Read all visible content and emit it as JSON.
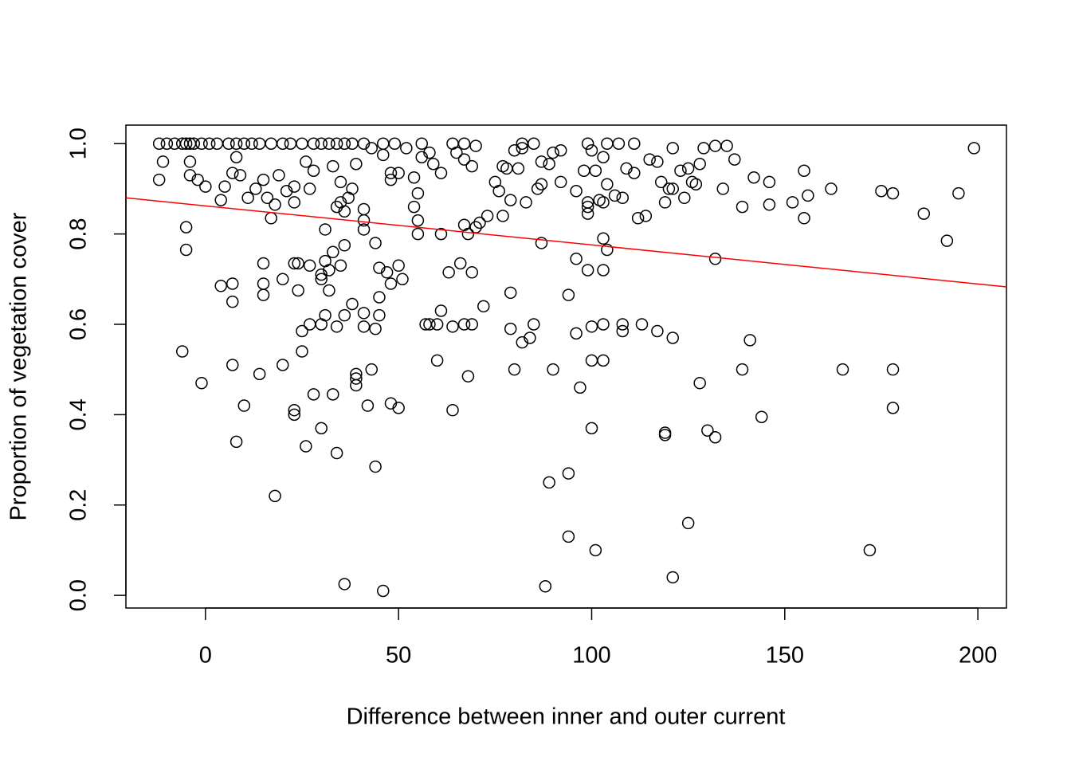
{
  "chart_data": {
    "type": "scatter",
    "x_label": "Difference between inner and outer current",
    "y_label": "Proportion of vegetation cover",
    "xlim": [
      -20.6,
      207.4
    ],
    "ylim": [
      -0.028,
      1.041
    ],
    "xticks": [
      0,
      50,
      100,
      150,
      200
    ],
    "yticks": [
      {
        "value": 0,
        "label": "0.0"
      },
      0.2,
      0.4,
      0.6,
      0.8,
      {
        "value": 1,
        "label": "1.0"
      }
    ],
    "color": "#000000",
    "x": [
      -12,
      -10,
      -8,
      -6,
      -5,
      -4,
      -3,
      -1,
      1,
      3,
      6,
      8,
      10,
      12,
      14,
      17,
      20,
      22,
      25,
      28,
      30,
      32,
      34,
      36,
      38,
      41,
      43,
      46,
      49,
      52,
      56,
      58,
      64,
      67,
      70,
      82,
      85,
      99,
      104,
      107,
      111,
      -11,
      -12,
      -4,
      -4,
      -2,
      0,
      4,
      5,
      7,
      8,
      9,
      11,
      13,
      15,
      16,
      17,
      18,
      19,
      21,
      23,
      23,
      26,
      27,
      28,
      33,
      35,
      35,
      34,
      36,
      37,
      38,
      39,
      41,
      41,
      41,
      46,
      48,
      48,
      50,
      54,
      55,
      54,
      55,
      55,
      56,
      59,
      61,
      61,
      65,
      67,
      67,
      68,
      69,
      70,
      71,
      73,
      75,
      76,
      77,
      77,
      78,
      79,
      80,
      81,
      82,
      83,
      86,
      87,
      87,
      89,
      90,
      92,
      92,
      96,
      98,
      99,
      99,
      99,
      100,
      101,
      102,
      103,
      103,
      104,
      106,
      108,
      109,
      111,
      112,
      114,
      115,
      117,
      118,
      119,
      120,
      121,
      121,
      123,
      124,
      125,
      126,
      127,
      128,
      129,
      132,
      134,
      135,
      137,
      139,
      142,
      146,
      146,
      152,
      155,
      156,
      155,
      162,
      175,
      178,
      186,
      192,
      195,
      199,
      -5,
      -5,
      4,
      7,
      7,
      15,
      15,
      15,
      20,
      23,
      24,
      24,
      27,
      30,
      30,
      31,
      31,
      32,
      32,
      33,
      35,
      36,
      38,
      36,
      31,
      30,
      27,
      25,
      34,
      41,
      41,
      44,
      45,
      45,
      45,
      44,
      47,
      48,
      50,
      51,
      57,
      58,
      60,
      61,
      63,
      64,
      66,
      67,
      69,
      69,
      72,
      79,
      79,
      82,
      84,
      85,
      87,
      94,
      96,
      96,
      99,
      100,
      103,
      104,
      103,
      103,
      108,
      108,
      113,
      117,
      121,
      132,
      -6,
      -1,
      7,
      8,
      10,
      14,
      18,
      20,
      23,
      23,
      25,
      26,
      28,
      30,
      33,
      34,
      36,
      39,
      39,
      39,
      42,
      43,
      44,
      46,
      48,
      50,
      60,
      64,
      68,
      80,
      88,
      89,
      90,
      94,
      94,
      97,
      100,
      100,
      101,
      103,
      119,
      119,
      121,
      125,
      128,
      130,
      132,
      139,
      141,
      144,
      165,
      172,
      178,
      178
    ],
    "values": [
      1,
      1,
      1,
      1,
      1,
      1,
      1,
      1,
      1,
      1,
      1,
      1,
      1,
      1,
      1,
      1,
      1,
      1,
      1,
      1,
      1,
      1,
      1,
      1,
      1,
      1,
      0.99,
      1,
      1,
      0.99,
      1,
      0.98,
      1,
      1,
      0.995,
      1,
      1,
      1,
      1,
      1,
      1,
      0.96,
      0.92,
      0.96,
      0.93,
      0.92,
      0.905,
      0.875,
      0.905,
      0.935,
      0.97,
      0.93,
      0.88,
      0.9,
      0.92,
      0.88,
      0.835,
      0.865,
      0.93,
      0.895,
      0.87,
      0.905,
      0.96,
      0.9,
      0.94,
      0.95,
      0.915,
      0.87,
      0.86,
      0.85,
      0.88,
      0.9,
      0.955,
      0.855,
      0.83,
      0.81,
      0.975,
      0.935,
      0.92,
      0.935,
      0.925,
      0.89,
      0.86,
      0.83,
      0.8,
      0.97,
      0.955,
      0.935,
      0.8,
      0.98,
      0.965,
      0.82,
      0.8,
      0.95,
      0.815,
      0.825,
      0.84,
      0.915,
      0.895,
      0.95,
      0.84,
      0.945,
      0.875,
      0.985,
      0.945,
      0.99,
      0.87,
      0.9,
      0.91,
      0.96,
      0.955,
      0.98,
      0.915,
      0.985,
      0.895,
      0.94,
      0.87,
      0.845,
      0.86,
      0.985,
      0.94,
      0.875,
      0.87,
      0.97,
      0.91,
      0.885,
      0.88,
      0.945,
      0.935,
      0.835,
      0.84,
      0.965,
      0.96,
      0.915,
      0.87,
      0.9,
      0.9,
      0.99,
      0.94,
      0.88,
      0.945,
      0.915,
      0.91,
      0.955,
      0.99,
      0.995,
      0.9,
      0.995,
      0.965,
      0.86,
      0.925,
      0.915,
      0.865,
      0.87,
      0.94,
      0.885,
      0.835,
      0.9,
      0.895,
      0.89,
      0.845,
      0.785,
      0.89,
      0.99,
      0.815,
      0.765,
      0.685,
      0.69,
      0.65,
      0.69,
      0.665,
      0.735,
      0.7,
      0.735,
      0.735,
      0.675,
      0.73,
      0.71,
      0.7,
      0.74,
      0.81,
      0.72,
      0.675,
      0.76,
      0.73,
      0.775,
      0.645,
      0.62,
      0.62,
      0.6,
      0.6,
      0.585,
      0.595,
      0.625,
      0.595,
      0.78,
      0.725,
      0.66,
      0.62,
      0.59,
      0.715,
      0.69,
      0.73,
      0.7,
      0.6,
      0.6,
      0.6,
      0.63,
      0.715,
      0.595,
      0.735,
      0.6,
      0.715,
      0.6,
      0.64,
      0.67,
      0.59,
      0.56,
      0.57,
      0.6,
      0.78,
      0.665,
      0.745,
      0.58,
      0.72,
      0.595,
      0.79,
      0.765,
      0.72,
      0.6,
      0.6,
      0.585,
      0.6,
      0.585,
      0.57,
      0.745,
      0.54,
      0.47,
      0.51,
      0.34,
      0.42,
      0.49,
      0.22,
      0.51,
      0.41,
      0.4,
      0.54,
      0.33,
      0.445,
      0.37,
      0.445,
      0.315,
      0.025,
      0.49,
      0.48,
      0.465,
      0.42,
      0.5,
      0.285,
      0.01,
      0.425,
      0.415,
      0.52,
      0.41,
      0.485,
      0.5,
      0.02,
      0.25,
      0.5,
      0.13,
      0.27,
      0.46,
      0.52,
      0.37,
      0.1,
      0.52,
      0.36,
      0.355,
      0.04,
      0.16,
      0.47,
      0.365,
      0.35,
      0.5,
      0.565,
      0.395,
      0.5,
      0.1,
      0.5,
      0.415
    ],
    "trend_line": {
      "x": [
        -20.6,
        207.4
      ],
      "values": [
        0.88,
        0.683
      ],
      "color": "#ff0000"
    }
  }
}
